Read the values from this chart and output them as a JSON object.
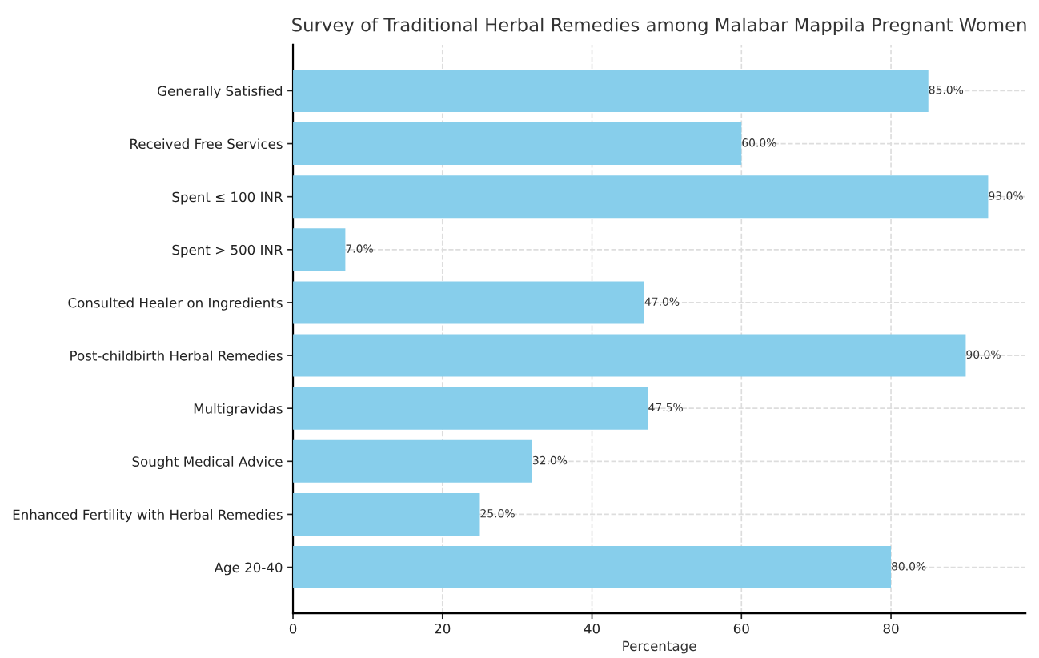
{
  "chart_data": {
    "type": "bar",
    "orientation": "horizontal",
    "title": "Survey of Traditional Herbal Remedies among Malabar Mappila Pregnant Women",
    "xlabel": "Percentage",
    "categories": [
      "Generally Satisfied",
      "Received Free Services",
      "Spent ≤ 100 INR",
      "Spent > 500 INR",
      "Consulted Healer on Ingredients",
      "Post-childbirth Herbal Remedies",
      "Multigravidas",
      "Sought Medical Advice",
      "Enhanced Fertility with Herbal Remedies",
      "Age 20-40"
    ],
    "values": [
      85,
      60,
      93,
      7,
      47,
      90,
      47.5,
      32,
      25,
      80
    ],
    "value_labels": [
      "85.0%",
      "60.0%",
      "93.0%",
      "7.0%",
      "47.0%",
      "90.0%",
      "47.5%",
      "32.0%",
      "25.0%",
      "80.0%"
    ],
    "color": "#87ceeb",
    "xlim": [
      0,
      98
    ],
    "xticks": [
      0,
      20,
      40,
      60,
      80
    ],
    "grid": true
  }
}
